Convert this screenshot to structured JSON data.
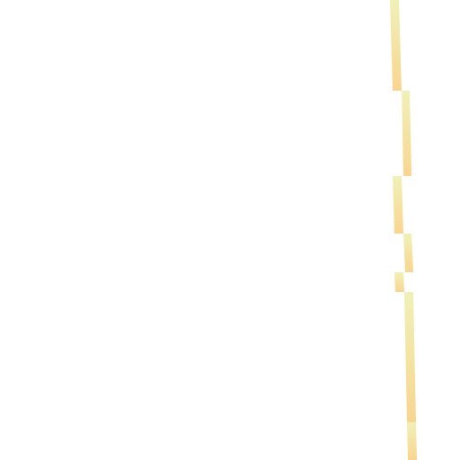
{
  "image": {
    "description_visible_text": "",
    "background_color": "#ffffff",
    "stroke": {
      "kind": "vertical-jagged-line",
      "color_top": "#f0f1b8",
      "color_bottom": "#f9d58f"
    }
  }
}
